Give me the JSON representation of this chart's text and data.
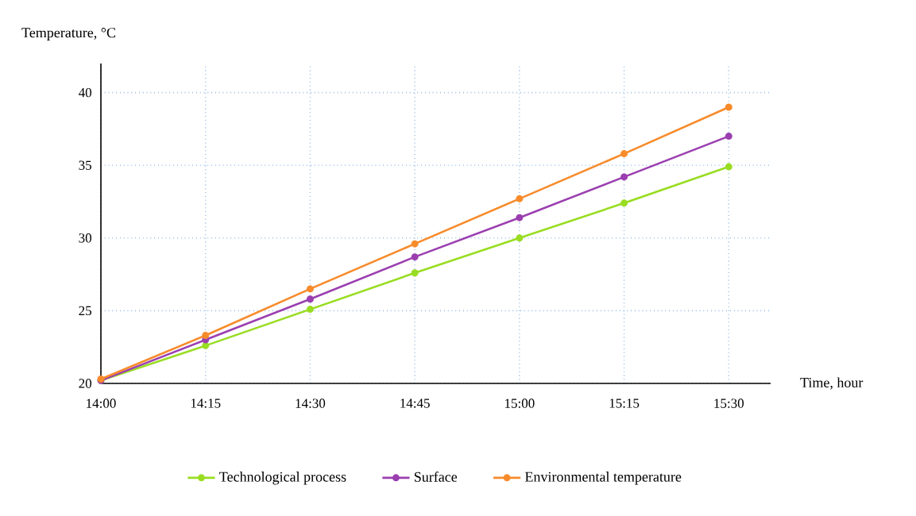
{
  "chart_data": {
    "type": "line",
    "xlabel": "Time, hour",
    "ylabel": "Temperature, °C",
    "x": [
      14,
      14.25,
      14.5,
      14.75,
      15,
      15.25,
      15.5
    ],
    "series": [
      {
        "name": "Technological process",
        "color": "#99dd22",
        "values": [
          20.2,
          22.6,
          25.1,
          27.6,
          30.0,
          32.4,
          34.9
        ]
      },
      {
        "name": "Surface",
        "color": "#9b3fb0",
        "values": [
          20.2,
          23.0,
          25.8,
          28.7,
          31.4,
          34.2,
          37.0
        ]
      },
      {
        "name": "Environmental temperature",
        "color": "#f78b2b",
        "values": [
          20.3,
          23.3,
          26.5,
          29.6,
          32.7,
          35.8,
          39.0
        ]
      }
    ],
    "xlim": [
      14,
      15.6
    ],
    "xticks": [
      {
        "value": 14,
        "label": "14:00"
      },
      {
        "value": 14.25,
        "label": "14:15"
      },
      {
        "value": 14.5,
        "label": "14:30"
      },
      {
        "value": 14.75,
        "label": "14:45"
      },
      {
        "value": 15,
        "label": "15:00"
      },
      {
        "value": 15.25,
        "label": "15:15"
      },
      {
        "value": 15.5,
        "label": "15:30"
      }
    ],
    "ylim": [
      20,
      42
    ],
    "yticks": [
      20,
      25,
      30,
      35,
      40
    ],
    "grid": true,
    "legend": "bottom",
    "marker": "circle",
    "line_style": "solid"
  }
}
